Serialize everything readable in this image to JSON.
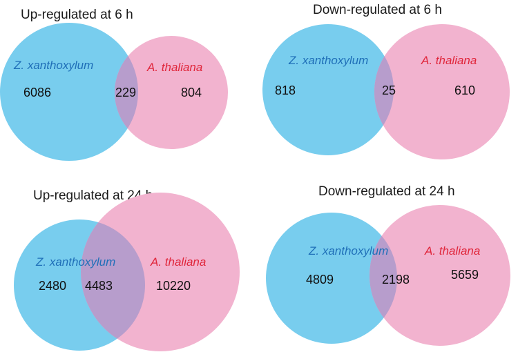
{
  "colors": {
    "left_fill": "#78cdee",
    "right_fill": "#f2b3cf",
    "overlap_fill": "#b79dcc",
    "left_label": "#1f6fb8",
    "right_label": "#e0263b"
  },
  "diagrams": [
    {
      "title": "Up-regulated at 6 h",
      "left_label": "Z. xanthoxylum",
      "right_label": "A. thaliana",
      "left_only": "6086",
      "overlap": "229",
      "right_only": "804"
    },
    {
      "title": "Down-regulated at 6 h",
      "left_label": "Z. xanthoxylum",
      "right_label": "A. thaliana",
      "left_only": "818",
      "overlap": "25",
      "right_only": "610"
    },
    {
      "title": "Up-regulated at 24 h",
      "left_label": "Z. xanthoxylum",
      "right_label": "A. thaliana",
      "left_only": "2480",
      "overlap": "4483",
      "right_only": "10220"
    },
    {
      "title": "Down-regulated at 24 h",
      "left_label": "Z. xanthoxylum",
      "right_label": "A. thaliana",
      "left_only": "4809",
      "overlap": "2198",
      "right_only": "5659"
    }
  ]
}
